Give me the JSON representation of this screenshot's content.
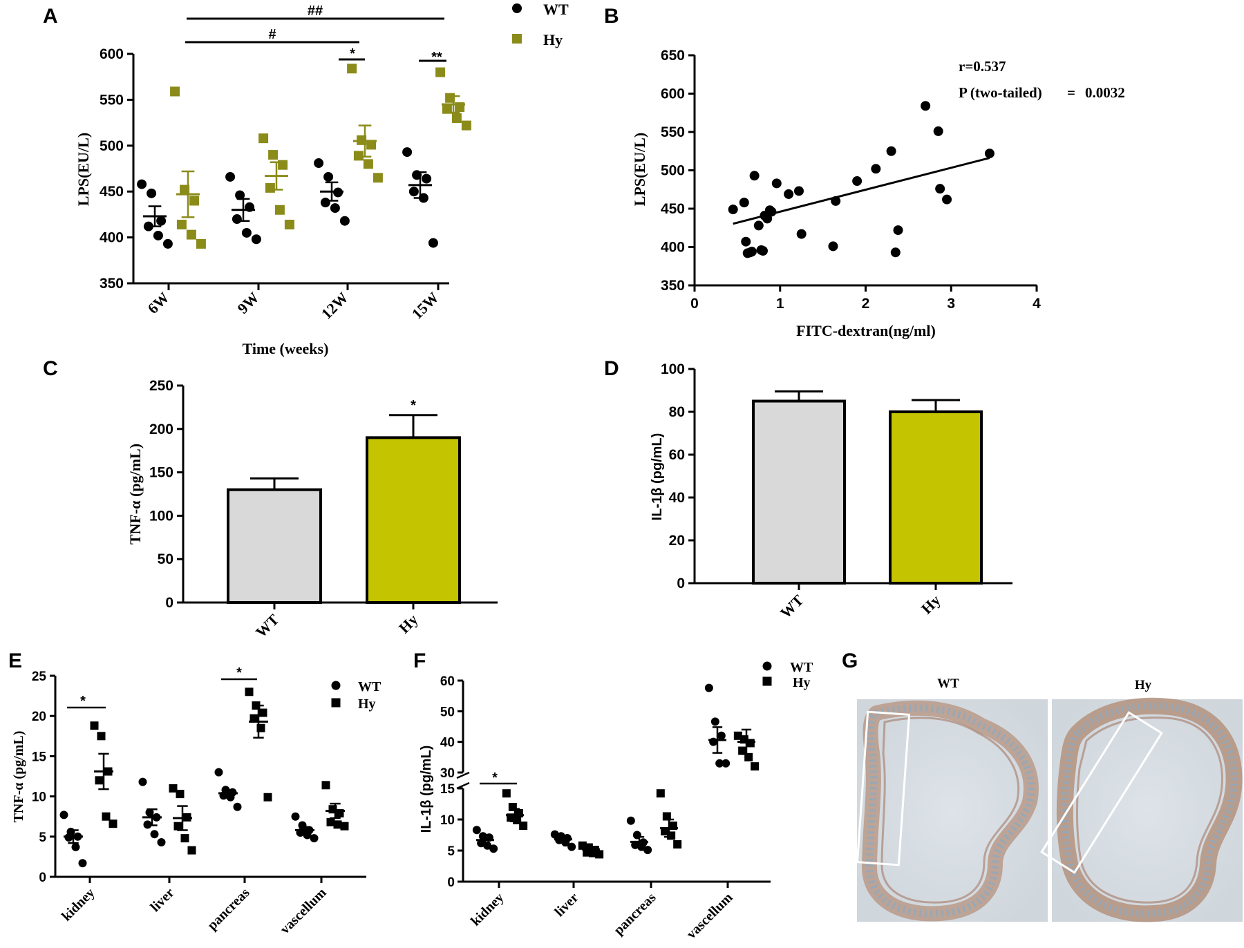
{
  "colors": {
    "wt_marker": "#000000",
    "hy_marker": "#8b8b1a",
    "bar_wt": "#d9d9d9",
    "bar_hy": "#c4c400"
  },
  "panels": {
    "A": "A",
    "B": "B",
    "C": "C",
    "D": "D",
    "E": "E",
    "F": "F",
    "G": "G"
  },
  "chart_data": [
    {
      "id": "A",
      "type": "scatter",
      "title": "",
      "xlabel": "Time (weeks)",
      "ylabel": "LPS(EU/L)",
      "ylim": [
        350,
        600
      ],
      "yticks": [
        350,
        400,
        450,
        500,
        550,
        600
      ],
      "categories": [
        "6W",
        "9W",
        "12W",
        "15W"
      ],
      "legend": [
        "WT",
        "Hy"
      ],
      "series": [
        {
          "name": "WT",
          "mean": [
            423,
            430,
            450,
            457
          ],
          "sem": [
            11,
            12,
            10,
            14
          ],
          "points": [
            [
              458,
              448,
              418,
              412,
              402,
              393
            ],
            [
              466,
              446,
              433,
              420,
              405,
              398
            ],
            [
              481,
              466,
              449,
              438,
              432,
              418
            ],
            [
              493,
              468,
              464,
              450,
              443,
              394
            ]
          ]
        },
        {
          "name": "Hy",
          "mean": [
            447,
            467,
            505,
            545
          ],
          "sem": [
            25,
            15,
            17,
            9
          ],
          "points": [
            [
              559,
              452,
              440,
              414,
              403,
              393
            ],
            [
              508,
              490,
              479,
              454,
              430,
              414
            ],
            [
              584,
              506,
              501,
              489,
              480,
              465
            ],
            [
              580,
              552,
              542,
              540,
              530,
              522
            ]
          ]
        }
      ],
      "annotations": [
        "##",
        "#",
        "*",
        "**"
      ]
    },
    {
      "id": "B",
      "type": "scatter",
      "xlabel": "FITC-dextran(ng/ml)",
      "ylabel": "LPS(EU/L)",
      "xlim": [
        0,
        4
      ],
      "xticks": [
        0,
        1,
        2,
        3,
        4
      ],
      "ylim": [
        350,
        650
      ],
      "yticks": [
        350,
        400,
        450,
        500,
        550,
        600,
        650
      ],
      "r_text": "r=0.537",
      "p_label": "P (two-tailed)",
      "p_eq": "=",
      "p_value": "0.0032",
      "fit": {
        "slope": 28.6,
        "intercept": 417.5,
        "x_range": [
          0.45,
          3.45
        ]
      },
      "x": [
        0.45,
        0.58,
        0.62,
        0.65,
        0.7,
        0.75,
        0.8,
        0.82,
        0.85,
        0.88,
        0.9,
        0.96,
        1.1,
        1.22,
        1.25,
        1.62,
        1.65,
        1.9,
        2.12,
        2.3,
        2.35,
        2.38,
        2.7,
        2.85,
        2.87,
        2.95,
        3.45,
        0.6,
        0.67,
        0.78
      ],
      "y": [
        449,
        458,
        392,
        393,
        493,
        428,
        395,
        441,
        437,
        448,
        446,
        483,
        469,
        473,
        417,
        401,
        460,
        486,
        502,
        525,
        393,
        422,
        584,
        551,
        476,
        462,
        522,
        407,
        394,
        396
      ]
    },
    {
      "id": "C",
      "type": "bar",
      "categories": [
        "WT",
        "Hy"
      ],
      "values": [
        130,
        190
      ],
      "errors": [
        13,
        26
      ],
      "ylabel": "TNF-α (pg/mL)",
      "ylim": [
        0,
        250
      ],
      "yticks": [
        0,
        50,
        100,
        150,
        200,
        250
      ],
      "annotations": [
        "*"
      ]
    },
    {
      "id": "D",
      "type": "bar",
      "categories": [
        "WT",
        "Hy"
      ],
      "values": [
        85,
        80
      ],
      "errors": [
        4.5,
        5.5
      ],
      "ylabel": "IL-1β (pg/mL)",
      "ylim": [
        0,
        100
      ],
      "yticks": [
        0,
        20,
        40,
        60,
        80,
        100
      ]
    },
    {
      "id": "E",
      "type": "scatter",
      "categories": [
        "kidney",
        "liver",
        "pancreas",
        "vascellum"
      ],
      "ylabel": "TNF-α (pg/mL)",
      "ylim": [
        0,
        25
      ],
      "yticks": [
        0,
        5,
        10,
        15,
        20,
        25
      ],
      "legend": [
        "WT",
        "Hy"
      ],
      "series": [
        {
          "name": "WT",
          "mean": [
            5.0,
            7.4,
            10.4,
            5.8
          ],
          "sem": [
            0.8,
            1.0,
            0.4,
            0.4
          ],
          "points": [
            [
              7.7,
              5.6,
              5.0,
              4.9,
              3.7,
              1.7
            ],
            [
              11.8,
              8.0,
              7.4,
              6.5,
              5.3,
              4.3
            ],
            [
              13.0,
              10.8,
              10.5,
              10.1,
              9.9,
              8.7
            ],
            [
              7.5,
              6.4,
              5.8,
              5.5,
              5.2,
              4.8
            ]
          ]
        },
        {
          "name": "Hy",
          "mean": [
            13.1,
            7.3,
            19.3,
            8.2
          ],
          "sem": [
            2.2,
            1.5,
            2.0,
            0.9
          ],
          "points": [
            [
              18.8,
              17.5,
              13.1,
              12.0,
              7.5,
              6.6
            ],
            [
              11.0,
              10.3,
              7.4,
              6.3,
              4.8,
              3.3
            ],
            [
              23.0,
              21.3,
              20.4,
              19.7,
              18.5,
              9.9
            ],
            [
              11.4,
              8.4,
              7.9,
              6.8,
              6.5,
              6.3
            ]
          ]
        }
      ],
      "annotations": [
        "*",
        "*"
      ]
    },
    {
      "id": "F",
      "type": "scatter",
      "categories": [
        "kidney",
        "liver",
        "pancreas",
        "vascellum"
      ],
      "ylabel": "IL-1β (pg/mL)",
      "yticks_lower": [
        0,
        5,
        10,
        15
      ],
      "yticks_upper": [
        30,
        40,
        50,
        60
      ],
      "legend": [
        "WT",
        "Hy"
      ],
      "series": [
        {
          "name": "WT",
          "mean": [
            6.7,
            6.8,
            6.4,
            40.6
          ],
          "sem": [
            0.8,
            0.4,
            0.8,
            4.2
          ],
          "points": [
            [
              8.3,
              7.3,
              7.1,
              6.2,
              5.8,
              5.3
            ],
            [
              7.6,
              7.3,
              7.0,
              6.7,
              6.3,
              5.6
            ],
            [
              9.8,
              7.5,
              6.3,
              5.9,
              5.6,
              5.1
            ],
            [
              57.6,
              46.6,
              42.0,
              40.0,
              33.0,
              33.0
            ]
          ]
        },
        {
          "name": "Hy",
          "mean": [
            10.7,
            5.2,
            8.6,
            40.0
          ],
          "sem": [
            1.0,
            0.3,
            1.4,
            4.0
          ],
          "points": [
            [
              14.2,
              12.0,
              11.0,
              10.3,
              9.9,
              9.0
            ],
            [
              5.8,
              5.5,
              5.1,
              4.7,
              4.6,
              4.4
            ],
            [
              14.2,
              10.5,
              9.0,
              8.1,
              7.4,
              6.0
            ],
            [
              42.0,
              40.8,
              39.6,
              37.1,
              35.0,
              32.0
            ]
          ]
        }
      ],
      "annotations": [
        "*"
      ]
    }
  ],
  "histology": {
    "wt_title": "WT",
    "hy_title": "Hy"
  }
}
